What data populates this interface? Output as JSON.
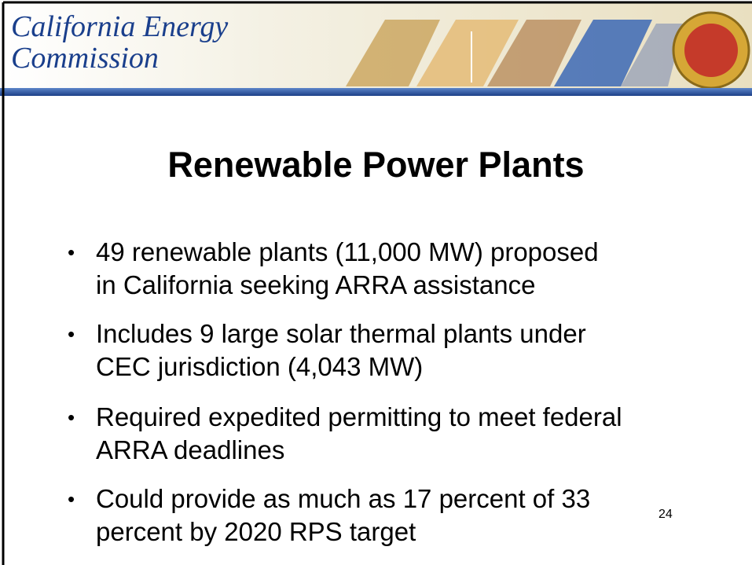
{
  "header": {
    "organization": [
      "California Energy",
      "Commission"
    ]
  },
  "slide": {
    "title": "Renewable Power Plants",
    "bullets": [
      [
        "49 renewable plants (11,000 MW) proposed",
        "in California seeking ARRA assistance"
      ],
      [
        "Includes 9 large solar thermal plants under",
        "CEC jurisdiction (4,043 MW)"
      ],
      [
        "Required expedited permitting to meet federal",
        "ARRA deadlines"
      ],
      [
        "Could provide as much as 17 percent of 33",
        "percent by 2020 RPS target"
      ]
    ],
    "page_number": "24"
  }
}
